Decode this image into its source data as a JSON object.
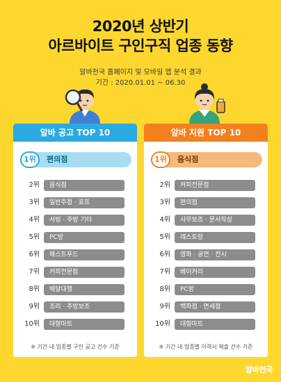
{
  "header": {
    "title_line1": "2020년 상반기",
    "title_line2": "아르바이트 구인구직 업종 동향",
    "subtitle": "알바천국 홈페이지 및 모바일 앱 분석 결과",
    "period": "기간 : 2020.01.01 ~ 06.30"
  },
  "left_panel": {
    "title": "알바 공고 TOP 10",
    "first": {
      "rank": "1위",
      "label": "편의점"
    },
    "items": [
      {
        "rank": "2위",
        "label": "음식점"
      },
      {
        "rank": "3위",
        "label": "일반주점 · 호프"
      },
      {
        "rank": "4위",
        "label": "서빙 · 주방 기타"
      },
      {
        "rank": "5위",
        "label": "PC방"
      },
      {
        "rank": "6위",
        "label": "패스트푸드"
      },
      {
        "rank": "7위",
        "label": "커피전문점"
      },
      {
        "rank": "8위",
        "label": "배달대행"
      },
      {
        "rank": "9위",
        "label": "조리 · 주방보조"
      },
      {
        "rank": "10위",
        "label": "대형마트"
      }
    ],
    "note": "※ 기간 내 업종별 구인 공고 건수 기준"
  },
  "right_panel": {
    "title": "알바 지원 TOP 10",
    "first": {
      "rank": "1위",
      "label": "음식점"
    },
    "items": [
      {
        "rank": "2위",
        "label": "커피전문점"
      },
      {
        "rank": "3위",
        "label": "편의점"
      },
      {
        "rank": "4위",
        "label": "사무보조 · 문서작성"
      },
      {
        "rank": "5위",
        "label": "레스토랑"
      },
      {
        "rank": "6위",
        "label": "영화 · 공연 · 전시"
      },
      {
        "rank": "7위",
        "label": "베이커리"
      },
      {
        "rank": "8위",
        "label": "PC방"
      },
      {
        "rank": "9위",
        "label": "백화점 · 면세점"
      },
      {
        "rank": "10위",
        "label": "대형마트"
      }
    ],
    "note": "※ 기간 내 업종별 이력서 제출 건수 기준"
  },
  "brand": "알바천국",
  "colors": {
    "background": "#FDD72E",
    "left_accent": "#2BA9E0",
    "right_accent": "#F3801F",
    "bar": "#8C8C8C"
  },
  "icons": {
    "left_character": "magnifier-character-icon",
    "right_character": "coffee-character-icon"
  }
}
